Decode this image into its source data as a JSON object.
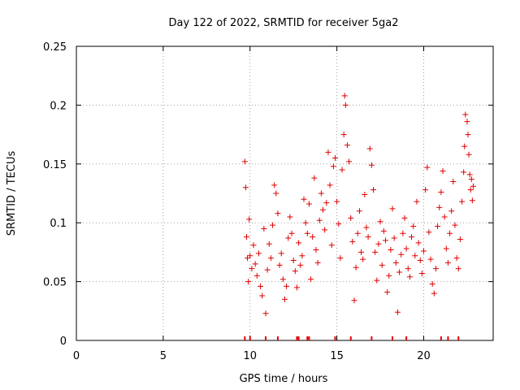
{
  "chart_data": {
    "type": "scatter",
    "title": "Day 122 of 2022, SRMTID for receiver 5ga2",
    "xlabel": "GPS time / hours",
    "ylabel": "SRMTID / TECUs",
    "xlim": [
      0,
      24
    ],
    "ylim": [
      0,
      0.25
    ],
    "x_ticks": [
      0,
      5,
      10,
      15,
      20
    ],
    "y_ticks": [
      0,
      0.05,
      0.1,
      0.15,
      0.2,
      0.25
    ],
    "x_tick_labels": [
      "0",
      "5",
      "10",
      "15",
      "20"
    ],
    "y_tick_labels": [
      "0",
      "0.05",
      "0.1",
      "0.15",
      "0.2",
      "0.25"
    ],
    "grid": true,
    "marker": "+",
    "series": [
      {
        "name": "SRMTID",
        "color": "#e00000",
        "approximate_points": true,
        "data_time_range_hours": [
          9.7,
          22.9
        ],
        "points": [
          [
            9.7,
            0.152
          ],
          [
            9.75,
            0.13
          ],
          [
            9.8,
            0.088
          ],
          [
            9.85,
            0.07
          ],
          [
            9.9,
            0.05
          ],
          [
            9.95,
            0.103
          ],
          [
            10.0,
            0.072
          ],
          [
            10.1,
            0.061
          ],
          [
            10.2,
            0.081
          ],
          [
            10.3,
            0.065
          ],
          [
            10.4,
            0.055
          ],
          [
            10.5,
            0.074
          ],
          [
            10.6,
            0.046
          ],
          [
            10.7,
            0.038
          ],
          [
            10.8,
            0.095
          ],
          [
            10.9,
            0.023
          ],
          [
            11.0,
            0.06
          ],
          [
            11.1,
            0.082
          ],
          [
            11.2,
            0.07
          ],
          [
            11.3,
            0.098
          ],
          [
            11.4,
            0.132
          ],
          [
            11.5,
            0.125
          ],
          [
            11.6,
            0.108
          ],
          [
            11.7,
            0.064
          ],
          [
            11.8,
            0.074
          ],
          [
            11.9,
            0.052
          ],
          [
            12.0,
            0.035
          ],
          [
            12.1,
            0.046
          ],
          [
            12.2,
            0.087
          ],
          [
            12.3,
            0.105
          ],
          [
            12.4,
            0.091
          ],
          [
            12.5,
            0.068
          ],
          [
            12.6,
            0.059
          ],
          [
            12.7,
            0.045
          ],
          [
            12.8,
            0.083
          ],
          [
            12.9,
            0.064
          ],
          [
            13.0,
            0.072
          ],
          [
            13.1,
            0.12
          ],
          [
            13.2,
            0.1
          ],
          [
            13.3,
            0.091
          ],
          [
            13.4,
            0.116
          ],
          [
            13.5,
            0.052
          ],
          [
            13.6,
            0.088
          ],
          [
            13.7,
            0.138
          ],
          [
            13.8,
            0.077
          ],
          [
            13.9,
            0.066
          ],
          [
            14.0,
            0.102
          ],
          [
            14.1,
            0.125
          ],
          [
            14.2,
            0.111
          ],
          [
            14.3,
            0.094
          ],
          [
            14.4,
            0.117
          ],
          [
            14.5,
            0.16
          ],
          [
            14.6,
            0.132
          ],
          [
            14.7,
            0.081
          ],
          [
            14.8,
            0.148
          ],
          [
            14.9,
            0.155
          ],
          [
            15.0,
            0.118
          ],
          [
            15.1,
            0.099
          ],
          [
            15.2,
            0.07
          ],
          [
            15.3,
            0.145
          ],
          [
            15.4,
            0.175
          ],
          [
            15.45,
            0.208
          ],
          [
            15.5,
            0.2
          ],
          [
            15.6,
            0.166
          ],
          [
            15.7,
            0.152
          ],
          [
            15.8,
            0.104
          ],
          [
            15.9,
            0.084
          ],
          [
            16.0,
            0.034
          ],
          [
            16.1,
            0.062
          ],
          [
            16.2,
            0.091
          ],
          [
            16.3,
            0.11
          ],
          [
            16.4,
            0.075
          ],
          [
            16.5,
            0.069
          ],
          [
            16.6,
            0.124
          ],
          [
            16.7,
            0.096
          ],
          [
            16.8,
            0.088
          ],
          [
            16.9,
            0.163
          ],
          [
            17.0,
            0.149
          ],
          [
            17.1,
            0.128
          ],
          [
            17.2,
            0.075
          ],
          [
            17.3,
            0.051
          ],
          [
            17.4,
            0.082
          ],
          [
            17.5,
            0.101
          ],
          [
            17.6,
            0.064
          ],
          [
            17.7,
            0.093
          ],
          [
            17.8,
            0.085
          ],
          [
            17.9,
            0.041
          ],
          [
            18.0,
            0.055
          ],
          [
            18.1,
            0.077
          ],
          [
            18.2,
            0.112
          ],
          [
            18.3,
            0.087
          ],
          [
            18.4,
            0.066
          ],
          [
            18.5,
            0.024
          ],
          [
            18.6,
            0.058
          ],
          [
            18.7,
            0.073
          ],
          [
            18.8,
            0.091
          ],
          [
            18.9,
            0.104
          ],
          [
            19.0,
            0.078
          ],
          [
            19.1,
            0.061
          ],
          [
            19.2,
            0.054
          ],
          [
            19.3,
            0.088
          ],
          [
            19.4,
            0.097
          ],
          [
            19.5,
            0.072
          ],
          [
            19.6,
            0.118
          ],
          [
            19.7,
            0.083
          ],
          [
            19.8,
            0.068
          ],
          [
            19.9,
            0.057
          ],
          [
            20.0,
            0.076
          ],
          [
            20.1,
            0.128
          ],
          [
            20.2,
            0.147
          ],
          [
            20.3,
            0.092
          ],
          [
            20.4,
            0.069
          ],
          [
            20.5,
            0.048
          ],
          [
            20.6,
            0.04
          ],
          [
            20.7,
            0.061
          ],
          [
            20.8,
            0.097
          ],
          [
            20.9,
            0.113
          ],
          [
            21.0,
            0.126
          ],
          [
            21.1,
            0.144
          ],
          [
            21.2,
            0.105
          ],
          [
            21.3,
            0.078
          ],
          [
            21.4,
            0.066
          ],
          [
            21.5,
            0.091
          ],
          [
            21.6,
            0.11
          ],
          [
            21.7,
            0.135
          ],
          [
            21.8,
            0.098
          ],
          [
            21.9,
            0.07
          ],
          [
            22.0,
            0.061
          ],
          [
            22.1,
            0.086
          ],
          [
            22.2,
            0.118
          ],
          [
            22.3,
            0.143
          ],
          [
            22.35,
            0.165
          ],
          [
            22.4,
            0.192
          ],
          [
            22.5,
            0.186
          ],
          [
            22.55,
            0.175
          ],
          [
            22.6,
            0.158
          ],
          [
            22.65,
            0.141
          ],
          [
            22.7,
            0.128
          ],
          [
            22.75,
            0.137
          ],
          [
            22.8,
            0.119
          ],
          [
            22.85,
            0.131
          ]
        ]
      }
    ],
    "x_axis_tick_marks_red": [
      9.7,
      10.0,
      10.9,
      11.6,
      12.7,
      12.8,
      13.3,
      13.4,
      14.9,
      15.8,
      17.0,
      18.2,
      19.0,
      21.0,
      21.4,
      22.0
    ]
  }
}
